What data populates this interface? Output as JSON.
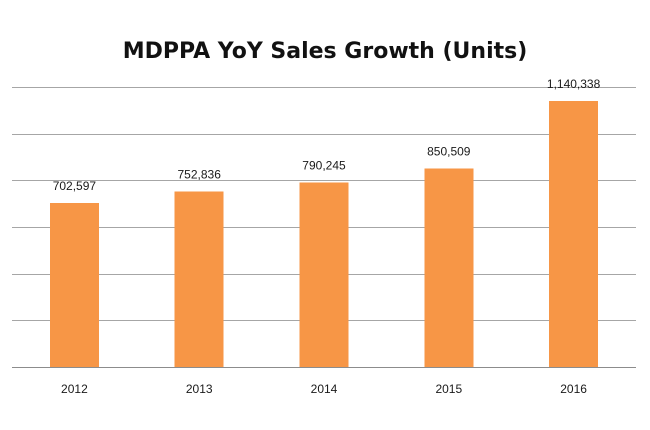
{
  "chart_data": {
    "type": "bar",
    "title": "MDPPA YoY Sales Growth (Units)",
    "xlabel": "",
    "ylabel": "",
    "categories": [
      "2012",
      "2013",
      "2014",
      "2015",
      "2016"
    ],
    "values": [
      702597,
      752836,
      790245,
      850509,
      1140338
    ],
    "data_labels": [
      "702,597",
      "752,836",
      "790,245",
      "850,509",
      "1,140,338"
    ],
    "ylim": [
      0,
      1200000
    ],
    "ytick_step": 200000,
    "grid": true,
    "y_tick_labels_visible": false,
    "legend": "none",
    "colors": {
      "bar": "#f79646",
      "grid": "#a6a6a6",
      "text": "#1a1a1a",
      "background": "#ffffff"
    }
  }
}
